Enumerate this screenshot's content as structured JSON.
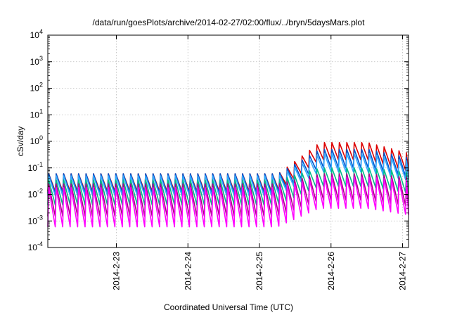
{
  "chart_data": {
    "type": "line",
    "title": "/data/run/goesPlots/archive/2014-02-27/02:00/flux/../bryn/5daysMars.plot",
    "xlabel": "Coordinated Universal Time (UTC)",
    "ylabel": "cSv/day",
    "yscale": "log",
    "ylim": [
      0.0001,
      10000
    ],
    "xlim": [
      "2014-02-22T01:00",
      "2014-02-27T02:00"
    ],
    "grid": true,
    "legend": "none",
    "yticks": [
      {
        "base": "10",
        "exp": "-4"
      },
      {
        "base": "10",
        "exp": "-3"
      },
      {
        "base": "10",
        "exp": "-2"
      },
      {
        "base": "10",
        "exp": "-1"
      },
      {
        "base": "10",
        "exp": "0"
      },
      {
        "base": "10",
        "exp": "1"
      },
      {
        "base": "10",
        "exp": "2"
      },
      {
        "base": "10",
        "exp": "3"
      },
      {
        "base": "10",
        "exp": "4"
      }
    ],
    "xticks": [
      "2014-2-23",
      "2014-2-24",
      "2014-2-25",
      "2014-2-26",
      "2014-2-27"
    ],
    "xtick_times": [
      "2014-02-23T00:00",
      "2014-02-24T00:00",
      "2014-02-25T00:00",
      "2014-02-26T00:00",
      "2014-02-27T00:00"
    ],
    "sawtooth_period_hours": 2.5,
    "series": [
      {
        "color": "#dd0000",
        "quiet_peak": 0.06,
        "quiet_min": 0.013,
        "active_peak": 0.9,
        "active_min": 0.2
      },
      {
        "color": "#0055cc",
        "quiet_peak": 0.06,
        "quiet_min": 0.011,
        "active_peak": 0.5,
        "active_min": 0.1
      },
      {
        "color": "#33aaff",
        "quiet_peak": 0.05,
        "quiet_min": 0.009,
        "active_peak": 0.35,
        "active_min": 0.07
      },
      {
        "color": "#00bb88",
        "quiet_peak": 0.035,
        "quiet_min": 0.004,
        "active_peak": 0.1,
        "active_min": 0.02
      },
      {
        "color": "#aa0088",
        "quiet_peak": 0.025,
        "quiet_min": 0.0015,
        "active_peak": 0.06,
        "active_min": 0.006
      },
      {
        "color": "#ff00ff",
        "quiet_peak": 0.018,
        "quiet_min": 0.0006,
        "active_peak": 0.045,
        "active_min": 0.003
      }
    ]
  }
}
